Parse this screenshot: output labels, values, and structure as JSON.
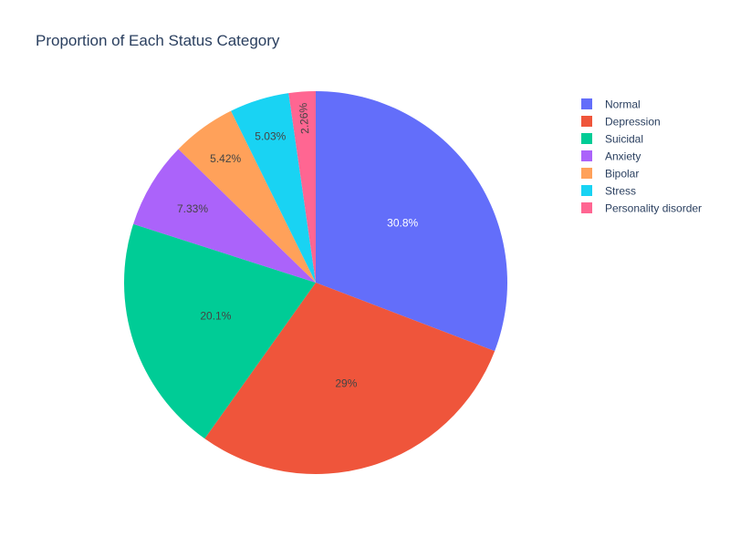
{
  "chart_data": {
    "type": "pie",
    "title": "Proportion of Each Status Category",
    "categories": [
      "Normal",
      "Depression",
      "Suicidal",
      "Anxiety",
      "Bipolar",
      "Stress",
      "Personality disorder"
    ],
    "values": [
      30.8,
      29.0,
      20.1,
      7.33,
      5.42,
      5.03,
      2.26
    ],
    "labels": [
      "30.8%",
      "29%",
      "20.1%",
      "7.33%",
      "5.42%",
      "5.03%",
      "2.26%"
    ],
    "colors": [
      "#636efa",
      "#ef553b",
      "#00cc96",
      "#ab63fa",
      "#ffa15a",
      "#19d3f3",
      "#ff6692"
    ],
    "label_colors": [
      "#ffffff",
      "#444444",
      "#444444",
      "#444444",
      "#444444",
      "#444444",
      "#444444"
    ],
    "direction": "clockwise",
    "legend_placement": "top-right"
  }
}
